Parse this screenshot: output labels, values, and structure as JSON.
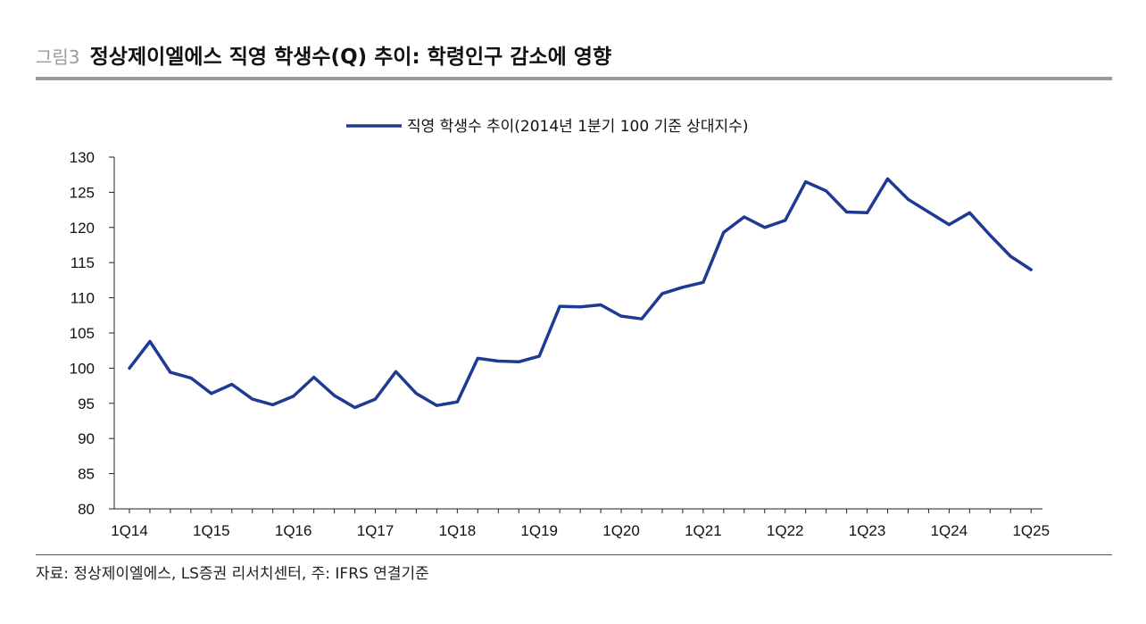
{
  "header": {
    "figure_label": "그림3",
    "title": "정상제이엘에스 직영 학생수(Q) 추이: 학령인구 감소에 영향"
  },
  "footer": {
    "source": "자료: 정상제이엘에스, LS증권 리서치센터, 주: IFRS 연결기준"
  },
  "colors": {
    "line": "#1f3a93",
    "rule": "#9b9b9b",
    "text": "#111111"
  },
  "chart_data": {
    "type": "line",
    "title": "",
    "xlabel": "",
    "ylabel": "",
    "ylim": [
      80,
      130
    ],
    "yticks": [
      80,
      85,
      90,
      95,
      100,
      105,
      110,
      115,
      120,
      125,
      130
    ],
    "xtick_labels": [
      "1Q14",
      "1Q15",
      "1Q16",
      "1Q17",
      "1Q18",
      "1Q19",
      "1Q20",
      "1Q21",
      "1Q22",
      "1Q23",
      "1Q24",
      "1Q25"
    ],
    "legend_position": "top-center",
    "grid": false,
    "x": [
      "1Q14",
      "2Q14",
      "3Q14",
      "4Q14",
      "1Q15",
      "2Q15",
      "3Q15",
      "4Q15",
      "1Q16",
      "2Q16",
      "3Q16",
      "4Q16",
      "1Q17",
      "2Q17",
      "3Q17",
      "4Q17",
      "1Q18",
      "2Q18",
      "3Q18",
      "4Q18",
      "1Q19",
      "2Q19",
      "3Q19",
      "4Q19",
      "1Q20",
      "2Q20",
      "3Q20",
      "4Q20",
      "1Q21",
      "2Q21",
      "3Q21",
      "4Q21",
      "1Q22",
      "2Q22",
      "3Q22",
      "4Q22",
      "1Q23",
      "2Q23",
      "3Q23",
      "4Q23",
      "1Q24",
      "2Q24",
      "3Q24",
      "4Q24",
      "1Q25"
    ],
    "series": [
      {
        "name": "직영 학생수 추이(2014년 1분기 100 기준 상대지수)",
        "values": [
          100.0,
          103.8,
          99.4,
          98.6,
          96.4,
          97.7,
          95.6,
          94.8,
          96.0,
          98.7,
          96.1,
          94.4,
          95.6,
          99.5,
          96.4,
          94.7,
          95.2,
          101.4,
          101.0,
          100.9,
          101.7,
          108.8,
          108.7,
          109.0,
          107.4,
          107.0,
          110.6,
          111.5,
          112.2,
          119.3,
          121.5,
          120.0,
          121.0,
          126.5,
          125.2,
          122.2,
          122.1,
          126.9,
          124.0,
          122.2,
          120.4,
          122.1,
          118.9,
          115.9,
          114.0
        ]
      }
    ]
  }
}
